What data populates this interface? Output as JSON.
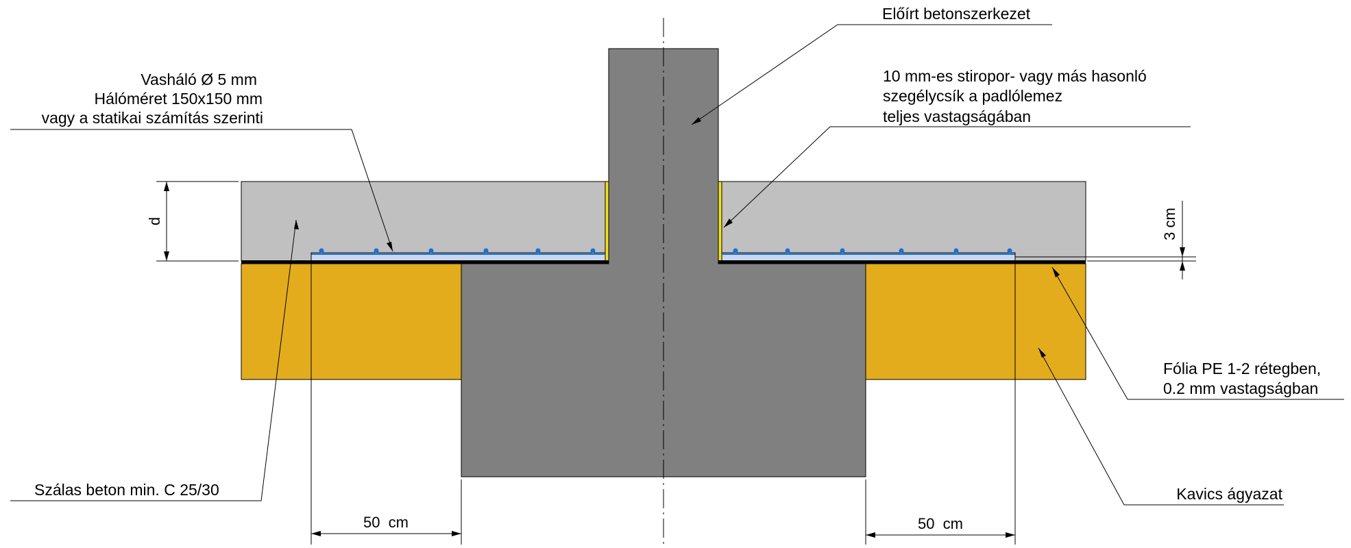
{
  "labels": {
    "structure": "Előírt betonszerkezet",
    "mesh": [
      "Vasháló Ø 5 mm",
      "Hálóméret 150x150 mm",
      "vagy a statikai számítás szerinti"
    ],
    "edge_strip": [
      "10 mm-es stiropor- vagy más hasonló",
      "szegélycsík a padlólemez",
      "teljes vastagságában"
    ],
    "foil": [
      "Fólia PE 1-2 rétegben,",
      "0.2 mm vastagságban"
    ],
    "fiber_concrete": "Szálas beton min. C 25/30",
    "gravel": "Kavics ágyazat"
  },
  "dimensions": {
    "slab_thickness": "d",
    "mesh_cover": "3 cm",
    "overlap_left": "50  cm",
    "overlap_right": "50  cm"
  },
  "colors": {
    "concrete_structure": "#808080",
    "slab": "#c0c0c0",
    "gravel": "#e2ac1d",
    "foil": "#000000",
    "mesh_bar": "#1b6fd0",
    "edge_strip": "#f0e020"
  },
  "icons": {
    "centerline": "dash-dot-centerline"
  }
}
